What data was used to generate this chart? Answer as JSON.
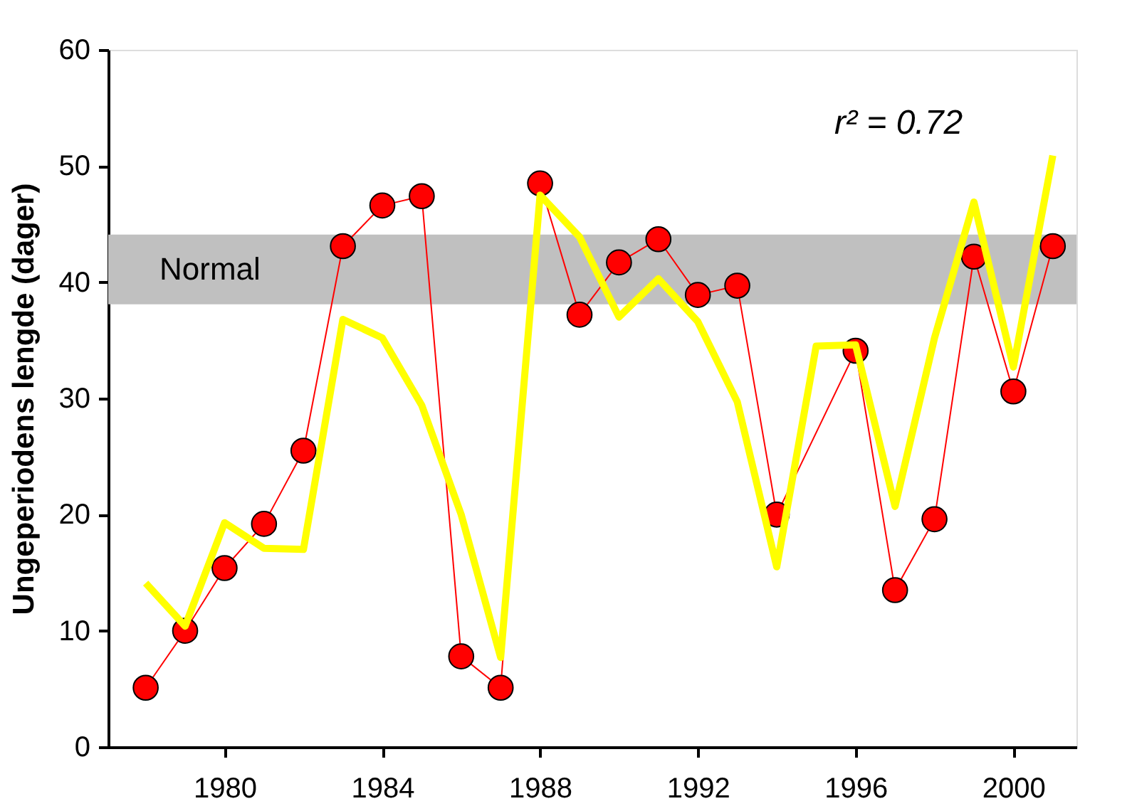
{
  "chart_data": {
    "type": "line",
    "ylabel": "Ungeperiodens lengde (dager)",
    "xlim": [
      1977.05,
      2001.6
    ],
    "xticks": [
      1980,
      1984,
      1988,
      1992,
      1996,
      2000
    ],
    "ylim": [
      0,
      60
    ],
    "yticks": [
      0,
      10,
      20,
      30,
      40,
      50,
      60
    ],
    "grid": false,
    "annotations": [
      "r² = 0.72"
    ],
    "bands": [
      {
        "axis": "y",
        "from": 38.1,
        "to": 44.1,
        "label": "Normal",
        "color": "#c0c0c0"
      }
    ],
    "series": [
      {
        "color": "#ffff00",
        "marker": "none",
        "x": [
          1978,
          1979,
          1980,
          1981,
          1982,
          1983,
          1984,
          1985,
          1986,
          1987,
          1988,
          1989,
          1990,
          1991,
          1992,
          1993,
          1994,
          1995,
          1996,
          1997,
          1998,
          1999,
          2000,
          2001
        ],
        "values": [
          14.1,
          10.4,
          19.3,
          17.1,
          17.0,
          36.8,
          35.2,
          29.4,
          20.0,
          7.7,
          47.5,
          43.9,
          37.0,
          40.3,
          36.6,
          29.7,
          15.5,
          34.5,
          34.6,
          20.7,
          35.2,
          46.9,
          32.7,
          50.9
        ]
      },
      {
        "color": "#ff0000",
        "marker": "circle",
        "x": [
          1978,
          1979,
          1980,
          1981,
          1982,
          1983,
          1984,
          1985,
          1986,
          1987,
          1988,
          1989,
          1990,
          1991,
          1992,
          1993,
          1994,
          1996,
          1997,
          1998,
          1999,
          2000,
          2001
        ],
        "values": [
          5.1,
          10.0,
          15.4,
          19.2,
          25.5,
          43.1,
          46.6,
          47.4,
          7.8,
          5.1,
          48.5,
          37.2,
          41.7,
          43.7,
          38.9,
          39.7,
          20.0,
          34.1,
          13.5,
          19.6,
          42.2,
          30.6,
          43.1
        ]
      }
    ]
  }
}
